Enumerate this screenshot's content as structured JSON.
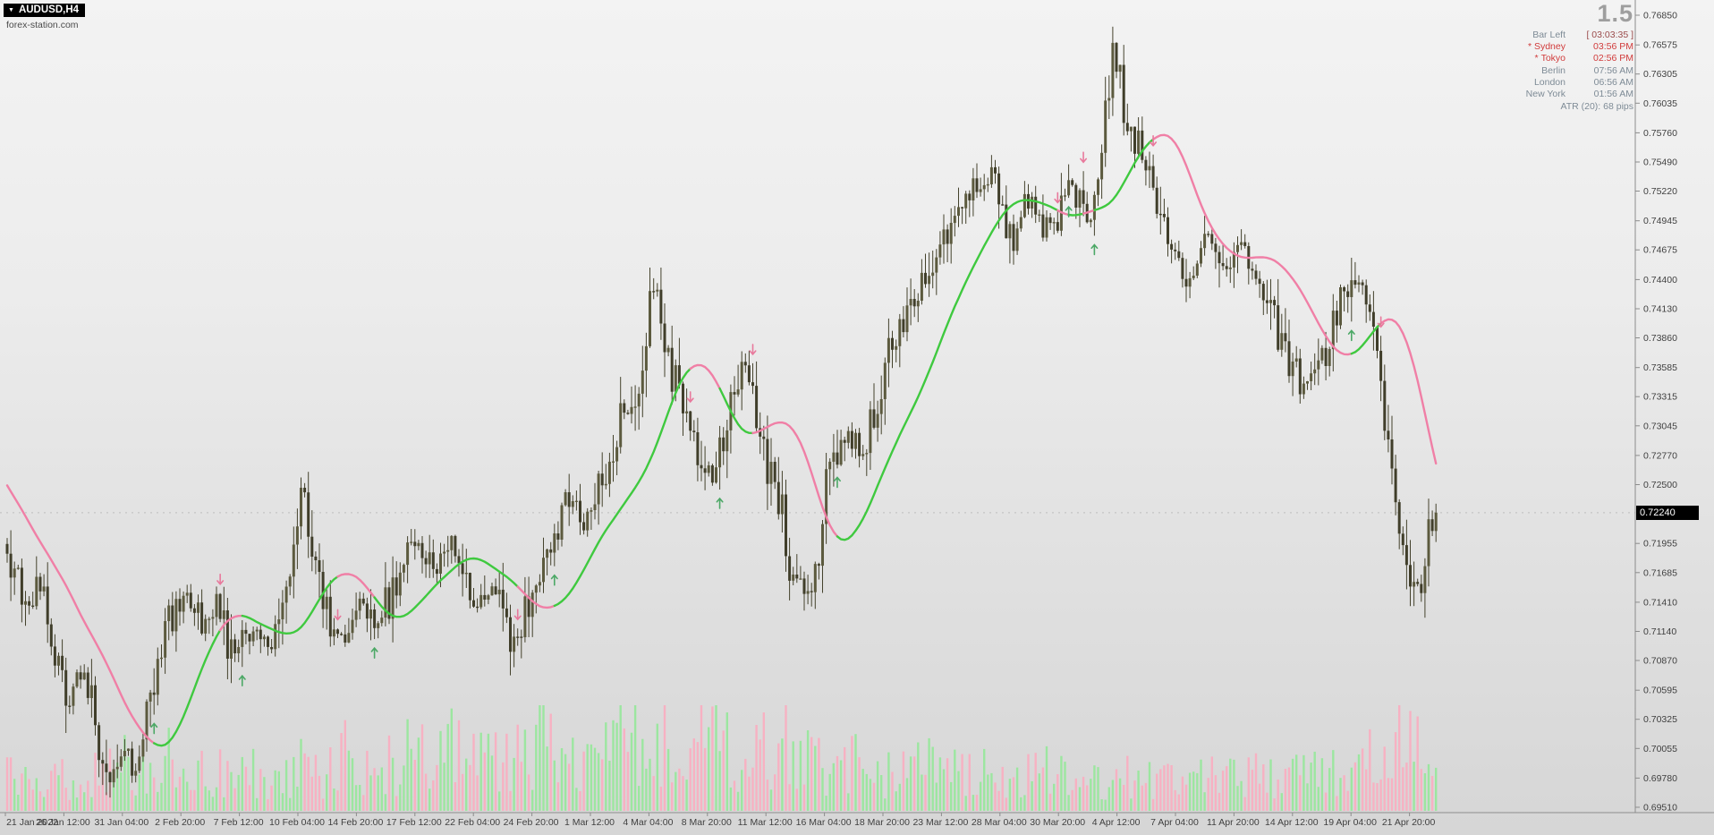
{
  "window": {
    "symbol_period": "AUDUSD,H4",
    "site": "forex-station.com",
    "big_value": "1.5"
  },
  "session_panel": {
    "bar_left_label": "Bar Left",
    "bar_left_value": "[ 03:03:35 ]",
    "active_marker": "*",
    "rows": [
      {
        "name": "Sydney",
        "time": "03:56 PM",
        "active": true
      },
      {
        "name": "Tokyo",
        "time": "02:56 PM",
        "active": true
      },
      {
        "name": "Berlin",
        "time": "07:56 AM",
        "active": false
      },
      {
        "name": "London",
        "time": "06:56 AM",
        "active": false
      },
      {
        "name": "New York",
        "time": "01:56 AM",
        "active": false
      }
    ],
    "atr_text": "ATR (20): 68 pips"
  },
  "chart_data": {
    "type": "candlestick",
    "symbol": "AUDUSD",
    "timeframe": "H4",
    "title": "AUDUSD,H4",
    "current_price": "0.72240",
    "y_axis": {
      "top_price": 0.7685,
      "bottom_price": 0.6951,
      "labels": [
        "0.76850",
        "0.76575",
        "0.76305",
        "0.76035",
        "0.75760",
        "0.75490",
        "0.75220",
        "0.74945",
        "0.74675",
        "0.74400",
        "0.74130",
        "0.73860",
        "0.73585",
        "0.73315",
        "0.73045",
        "0.72770",
        "0.72500",
        "0.71955",
        "0.71685",
        "0.71410",
        "0.71140",
        "0.70870",
        "0.70595",
        "0.70325",
        "0.70055",
        "0.69780",
        "0.69510"
      ]
    },
    "x_axis": {
      "labels": [
        "21 Jan 2022",
        "26 Jan 12:00",
        "31 Jan 04:00",
        "2 Feb 20:00",
        "7 Feb 12:00",
        "10 Feb 04:00",
        "14 Feb 20:00",
        "17 Feb 12:00",
        "22 Feb 04:00",
        "24 Feb 20:00",
        "1 Mar 12:00",
        "4 Mar 04:00",
        "8 Mar 20:00",
        "11 Mar 12:00",
        "16 Mar 04:00",
        "18 Mar 20:00",
        "23 Mar 12:00",
        "28 Mar 04:00",
        "30 Mar 20:00",
        "4 Apr 12:00",
        "7 Apr 04:00",
        "11 Apr 20:00",
        "14 Apr 12:00",
        "19 Apr 04:00",
        "21 Apr 20:00"
      ]
    },
    "candle_count": 390,
    "price_path_anchors": [
      [
        0,
        0.7195
      ],
      [
        6,
        0.713
      ],
      [
        10,
        0.7158
      ],
      [
        17,
        0.705
      ],
      [
        22,
        0.708
      ],
      [
        28,
        0.6973
      ],
      [
        32,
        0.701
      ],
      [
        36,
        0.6988
      ],
      [
        43,
        0.711
      ],
      [
        49,
        0.7148
      ],
      [
        54,
        0.712
      ],
      [
        58,
        0.7145
      ],
      [
        62,
        0.7085
      ],
      [
        68,
        0.712
      ],
      [
        72,
        0.709
      ],
      [
        76,
        0.713
      ],
      [
        81,
        0.725
      ],
      [
        86,
        0.716
      ],
      [
        90,
        0.7095
      ],
      [
        97,
        0.714
      ],
      [
        101,
        0.711
      ],
      [
        107,
        0.7165
      ],
      [
        112,
        0.7195
      ],
      [
        117,
        0.7165
      ],
      [
        122,
        0.72
      ],
      [
        128,
        0.7135
      ],
      [
        133,
        0.7165
      ],
      [
        139,
        0.7095
      ],
      [
        144,
        0.716
      ],
      [
        149,
        0.719
      ],
      [
        154,
        0.724
      ],
      [
        158,
        0.721
      ],
      [
        163,
        0.726
      ],
      [
        168,
        0.731
      ],
      [
        173,
        0.735
      ],
      [
        177,
        0.744
      ],
      [
        182,
        0.735
      ],
      [
        186,
        0.731
      ],
      [
        190,
        0.7265
      ],
      [
        193,
        0.725
      ],
      [
        198,
        0.734
      ],
      [
        202,
        0.7365
      ],
      [
        207,
        0.727
      ],
      [
        211,
        0.724
      ],
      [
        214,
        0.7175
      ],
      [
        220,
        0.7148
      ],
      [
        224,
        0.725
      ],
      [
        229,
        0.73
      ],
      [
        233,
        0.7275
      ],
      [
        237,
        0.732
      ],
      [
        242,
        0.739
      ],
      [
        246,
        0.741
      ],
      [
        251,
        0.7445
      ],
      [
        259,
        0.75
      ],
      [
        265,
        0.7528
      ],
      [
        270,
        0.754
      ],
      [
        274,
        0.747
      ],
      [
        279,
        0.752
      ],
      [
        283,
        0.7485
      ],
      [
        287,
        0.75
      ],
      [
        290,
        0.753
      ],
      [
        295,
        0.749
      ],
      [
        299,
        0.756
      ],
      [
        302,
        0.766
      ],
      [
        306,
        0.758
      ],
      [
        310,
        0.756
      ],
      [
        314,
        0.749
      ],
      [
        319,
        0.7465
      ],
      [
        323,
        0.744
      ],
      [
        328,
        0.748
      ],
      [
        332,
        0.7445
      ],
      [
        337,
        0.7475
      ],
      [
        341,
        0.744
      ],
      [
        345,
        0.7405
      ],
      [
        349,
        0.737
      ],
      [
        354,
        0.734
      ],
      [
        358,
        0.736
      ],
      [
        362,
        0.74
      ],
      [
        368,
        0.745
      ],
      [
        371,
        0.743
      ],
      [
        375,
        0.733
      ],
      [
        379,
        0.724
      ],
      [
        383,
        0.7135
      ],
      [
        386,
        0.7165
      ],
      [
        389,
        0.7224
      ]
    ],
    "signals": [
      {
        "i": 40,
        "dir": "up"
      },
      {
        "i": 58,
        "dir": "down"
      },
      {
        "i": 64,
        "dir": "up"
      },
      {
        "i": 90,
        "dir": "down"
      },
      {
        "i": 100,
        "dir": "up"
      },
      {
        "i": 139,
        "dir": "down"
      },
      {
        "i": 149,
        "dir": "up"
      },
      {
        "i": 186,
        "dir": "down"
      },
      {
        "i": 194,
        "dir": "up"
      },
      {
        "i": 203,
        "dir": "down"
      },
      {
        "i": 226,
        "dir": "up"
      },
      {
        "i": 286,
        "dir": "down"
      },
      {
        "i": 289,
        "dir": "up"
      },
      {
        "i": 293,
        "dir": "down"
      },
      {
        "i": 296,
        "dir": "up"
      },
      {
        "i": 312,
        "dir": "down"
      },
      {
        "i": 366,
        "dir": "up"
      },
      {
        "i": 374,
        "dir": "down"
      }
    ],
    "ma": {
      "up_color": "#3fc93f",
      "down_color": "#f07fa6"
    },
    "signal_colors": {
      "up": "#4ca866",
      "down": "#e8799c"
    },
    "colors": {
      "candle_up": "#5c5a3e",
      "candle_down": "#403e2a",
      "wick": "#44422c",
      "volume_up": "#9ce6a0",
      "volume_down": "#f7b1c2",
      "axis_text": "#3f3f3f",
      "axis_line": "#8c8c8c",
      "bid_line": "#bdbdbd",
      "bid_tag_bg": "#000000",
      "bid_tag_text": "#ffffff"
    }
  }
}
